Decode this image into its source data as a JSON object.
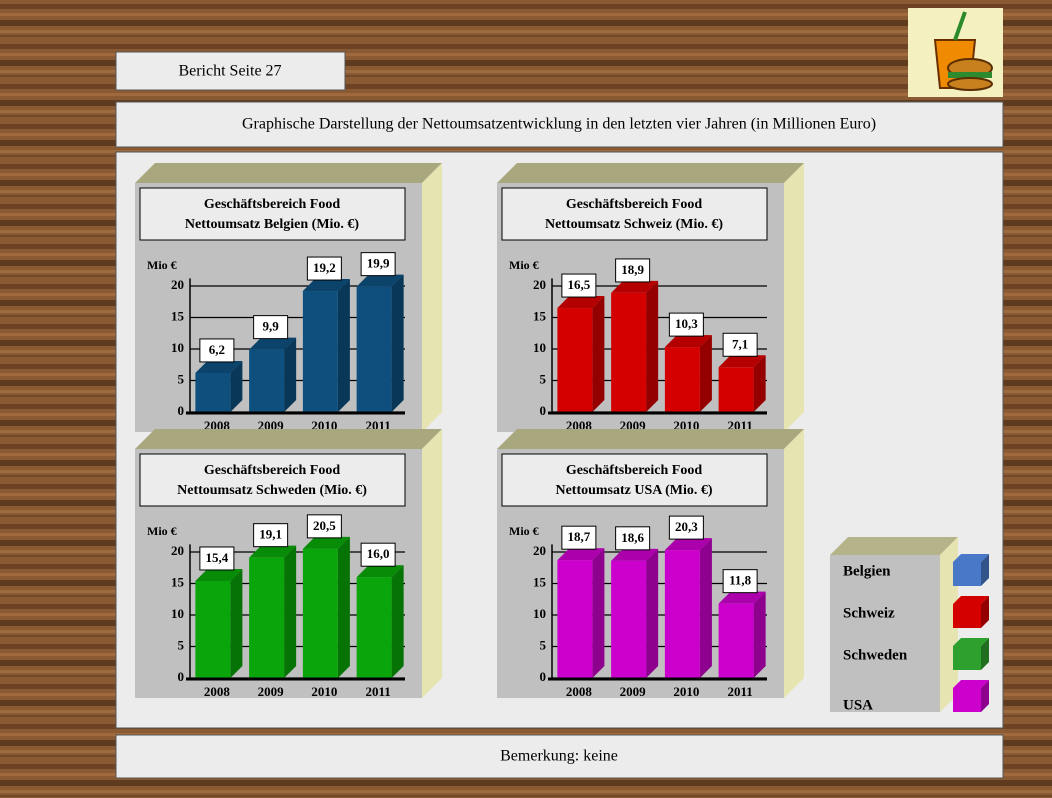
{
  "header": {
    "page": "Bericht Seite 27",
    "subtitle": "Graphische Darstellung der Nettoumsatzentwicklung in den letzten vier Jahren (in Millionen Euro)"
  },
  "chart_data": [
    {
      "type": "bar",
      "title": "Geschäftsbereich Food",
      "subtitle": "Nettoumsatz Belgien (Mio. €)",
      "y_label": "Mio €",
      "categories": [
        "2008",
        "2009",
        "2010",
        "2011"
      ],
      "values": [
        6.2,
        9.9,
        19.2,
        19.9
      ],
      "value_labels": [
        "6,2",
        "9,9",
        "19,2",
        "19,9"
      ],
      "color": "#0e4f7e",
      "ylim": [
        0,
        22
      ],
      "yticks": [
        0,
        5,
        10,
        15,
        20
      ],
      "grid": true
    },
    {
      "type": "bar",
      "title": "Geschäftsbereich Food",
      "subtitle": "Nettoumsatz Schweiz (Mio. €)",
      "y_label": "Mio €",
      "categories": [
        "2008",
        "2009",
        "2010",
        "2011"
      ],
      "values": [
        16.5,
        18.9,
        10.3,
        7.1
      ],
      "value_labels": [
        "16,5",
        "18,9",
        "10,3",
        "7,1"
      ],
      "color": "#d40000",
      "ylim": [
        0,
        22
      ],
      "yticks": [
        0,
        5,
        10,
        15,
        20
      ],
      "grid": true
    },
    {
      "type": "bar",
      "title": "Geschäftsbereich Food",
      "subtitle": "Nettoumsatz Schweden (Mio. €)",
      "y_label": "Mio €",
      "categories": [
        "2008",
        "2009",
        "2010",
        "2011"
      ],
      "values": [
        15.4,
        19.1,
        20.5,
        16.0
      ],
      "value_labels": [
        "15,4",
        "19,1",
        "20,5",
        "16,0"
      ],
      "color": "#0aa50a",
      "ylim": [
        0,
        22
      ],
      "yticks": [
        0,
        5,
        10,
        15,
        20
      ],
      "grid": true
    },
    {
      "type": "bar",
      "title": "Geschäftsbereich Food",
      "subtitle": "Nettoumsatz USA (Mio. €)",
      "y_label": "Mio €",
      "categories": [
        "2008",
        "2009",
        "2010",
        "2011"
      ],
      "values": [
        18.7,
        18.6,
        20.3,
        11.8
      ],
      "value_labels": [
        "18,7",
        "18,6",
        "20,3",
        "11,8"
      ],
      "color": "#cc00cc",
      "ylim": [
        0,
        22
      ],
      "yticks": [
        0,
        5,
        10,
        15,
        20
      ],
      "grid": true
    }
  ],
  "legend": [
    {
      "name": "Belgien",
      "color": "#4a78c8"
    },
    {
      "name": "Schweiz",
      "color": "#d40000"
    },
    {
      "name": "Schweden",
      "color": "#2ea02e"
    },
    {
      "name": "USA",
      "color": "#cc00cc"
    }
  ],
  "footer": "Bemerkung: keine"
}
